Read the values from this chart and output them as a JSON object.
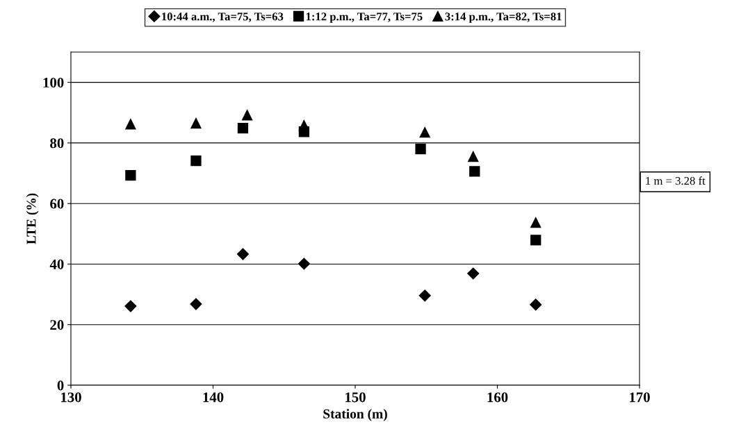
{
  "chart_data": {
    "type": "scatter",
    "xlabel": "Station (m)",
    "ylabel": "LTE (%)",
    "xlim": [
      130,
      170
    ],
    "xticks": [
      130,
      140,
      150,
      160,
      170
    ],
    "ylim": [
      0,
      110
    ],
    "yticks": [
      0,
      20,
      40,
      60,
      80,
      100
    ],
    "grid": "y",
    "legend": "top",
    "annotations": [
      "1 m = 3.28 ft"
    ],
    "series": [
      {
        "name": "10:44 a.m., Ta=75, Ts=63",
        "color": "#000000",
        "marker": "diamond",
        "x": [
          134.2,
          138.8,
          142.1,
          146.4,
          154.9,
          158.3,
          162.7
        ],
        "values": [
          26.1,
          26.8,
          43.3,
          40.1,
          29.6,
          36.9,
          26.6
        ]
      },
      {
        "name": "1:12 p.m., Ta=77, Ts=75",
        "color": "#000000",
        "marker": "square",
        "x": [
          134.2,
          138.8,
          142.1,
          146.4,
          154.6,
          158.4,
          162.7
        ],
        "values": [
          69.3,
          74.1,
          84.9,
          83.7,
          78.0,
          70.6,
          47.9
        ]
      },
      {
        "name": "3:14 p.m., Ta=82, Ts=81",
        "color": "#000000",
        "marker": "triangle",
        "x": [
          134.2,
          138.8,
          142.4,
          146.4,
          154.9,
          158.3,
          162.7
        ],
        "values": [
          86.2,
          86.5,
          89.2,
          85.8,
          83.5,
          75.5,
          53.7
        ]
      }
    ]
  }
}
